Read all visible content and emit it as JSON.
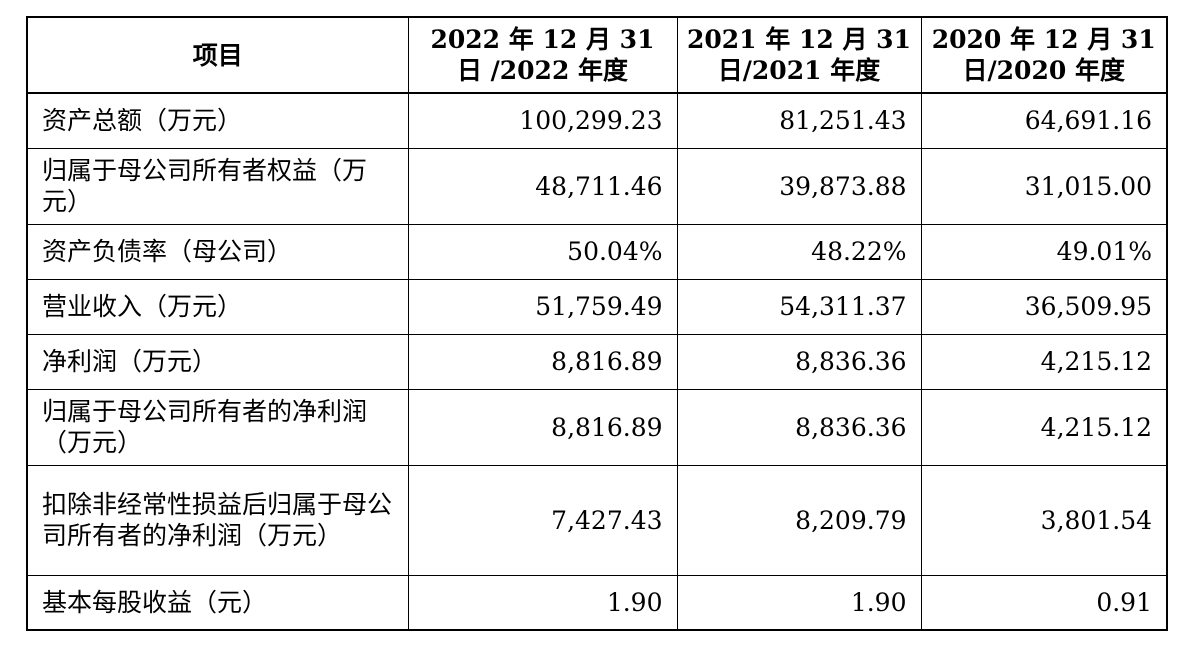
{
  "table": {
    "headers": [
      "项目",
      "2022 年 12 月 31 日 /2022 年度",
      "2021 年 12 月 31 日/2021 年度",
      "2020 年 12 月 31 日/2020 年度"
    ],
    "rows": [
      {
        "label": "资产总额（万元）",
        "values": [
          "100,299.23",
          "81,251.43",
          "64,691.16"
        ]
      },
      {
        "label": "归属于母公司所有者权益（万元）",
        "values": [
          "48,711.46",
          "39,873.88",
          "31,015.00"
        ]
      },
      {
        "label": "资产负债率（母公司）",
        "values": [
          "50.04%",
          "48.22%",
          "49.01%"
        ]
      },
      {
        "label": "营业收入（万元）",
        "values": [
          "51,759.49",
          "54,311.37",
          "36,509.95"
        ]
      },
      {
        "label": "净利润（万元）",
        "values": [
          "8,816.89",
          "8,836.36",
          "4,215.12"
        ]
      },
      {
        "label": "归属于母公司所有者的净利润（万元）",
        "values": [
          "8,816.89",
          "8,836.36",
          "4,215.12"
        ]
      },
      {
        "label": "扣除非经常性损益后归属于母公司所有者的净利润（万元）",
        "values": [
          "7,427.43",
          "8,209.79",
          "3,801.54"
        ]
      },
      {
        "label": "基本每股收益（元）",
        "values": [
          "1.90",
          "1.90",
          "0.91"
        ]
      }
    ]
  }
}
